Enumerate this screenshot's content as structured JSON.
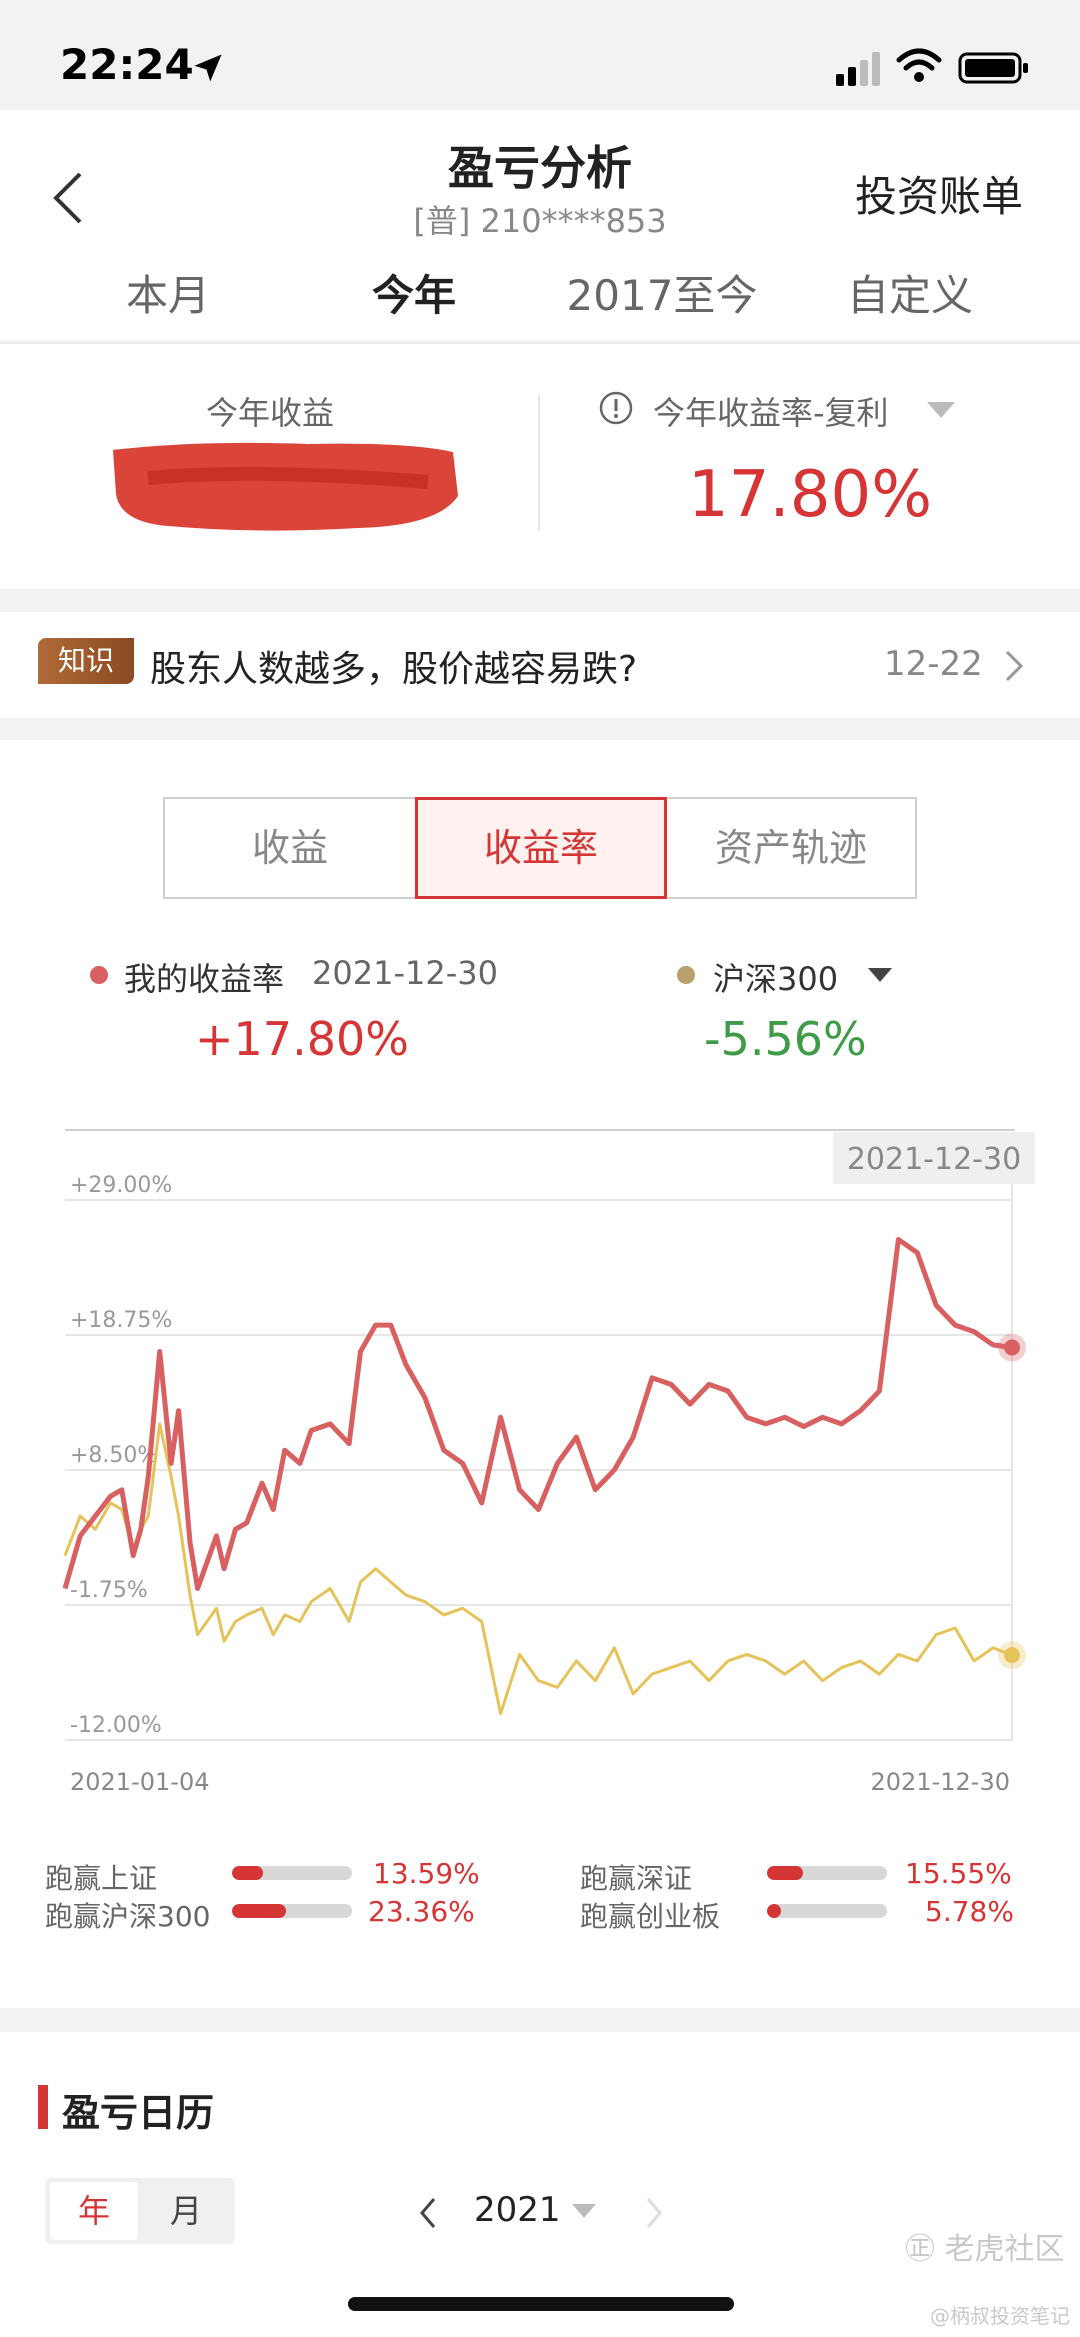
{
  "status_bar": {
    "time": "22:24"
  },
  "header": {
    "title": "盈亏分析",
    "account": "[普] 210****853",
    "bill_link": "投资账单",
    "tabs": [
      {
        "label": "本月"
      },
      {
        "label": "今年",
        "active": true
      },
      {
        "label": "2017至今"
      },
      {
        "label": "自定义"
      }
    ]
  },
  "summary": {
    "left_label": "今年收益",
    "right_label": "今年收益率-复利",
    "rate": "17.80%"
  },
  "knowledge": {
    "badge": "知识",
    "text": "股东人数越多，股价越容易跌?",
    "date": "12-22"
  },
  "segment": {
    "options": [
      "收益",
      "收益率",
      "资产轨迹"
    ],
    "active_index": 1
  },
  "legend": {
    "mine": {
      "label": "我的收益率",
      "date": "2021-12-30",
      "value": "+17.80%"
    },
    "index": {
      "label": "沪深300",
      "value": "-5.56%"
    }
  },
  "colors": {
    "accent_red": "#d63535",
    "green": "#3e9b47",
    "index_gold": "#e6c25a",
    "dot_gold": "#b8a06a"
  },
  "chart_data": {
    "type": "line",
    "tooltip_date": "2021-12-30",
    "y_ticks": [
      "+29.00%",
      "+18.75%",
      "+8.50%",
      "-1.75%",
      "-12.00%"
    ],
    "x_ticks": [
      "2021-01-04",
      "2021-12-30"
    ],
    "ylim": [
      -12.0,
      29.0
    ],
    "series": [
      {
        "name": "我的收益率",
        "color": "#d86060",
        "x": [
          0,
          4,
          8,
          12,
          15,
          18,
          20,
          22,
          25,
          28,
          30,
          33,
          35,
          40,
          42,
          45,
          48,
          52,
          55,
          58,
          62,
          65,
          70,
          75,
          78,
          82,
          86,
          90,
          95,
          100,
          105,
          110,
          115,
          120,
          125,
          130,
          135,
          140,
          145,
          150,
          155,
          160,
          165,
          170,
          175,
          180,
          185,
          190,
          195,
          200,
          205,
          210,
          215,
          220,
          225,
          230,
          235,
          240,
          245,
          250
        ],
        "values": [
          -0.5,
          3.5,
          5.0,
          6.5,
          7.0,
          2.0,
          4.0,
          8.0,
          17.5,
          9.0,
          13.0,
          3.0,
          -0.5,
          3.5,
          1.0,
          4.0,
          4.5,
          7.5,
          5.5,
          10.0,
          9.0,
          11.5,
          12.0,
          10.5,
          17.5,
          19.5,
          19.5,
          16.5,
          14.0,
          10.0,
          9.0,
          6.0,
          12.5,
          7.0,
          5.5,
          9.0,
          11.0,
          7.0,
          8.5,
          11.0,
          15.5,
          15.0,
          13.5,
          15.0,
          14.5,
          12.5,
          12.0,
          12.5,
          11.8,
          12.5,
          12.0,
          13.0,
          14.5,
          26.0,
          25.0,
          21.0,
          19.5,
          19.0,
          18.0,
          17.8
        ]
      },
      {
        "name": "沪深300",
        "color": "#e6c25a",
        "x": [
          0,
          4,
          8,
          12,
          15,
          18,
          20,
          22,
          25,
          28,
          30,
          33,
          35,
          40,
          42,
          45,
          48,
          52,
          55,
          58,
          62,
          65,
          70,
          75,
          78,
          82,
          86,
          90,
          95,
          100,
          105,
          110,
          115,
          120,
          125,
          130,
          135,
          140,
          145,
          150,
          155,
          160,
          165,
          170,
          175,
          180,
          185,
          190,
          195,
          200,
          205,
          210,
          215,
          220,
          225,
          230,
          235,
          240,
          245,
          250
        ],
        "values": [
          2.0,
          5.0,
          4.0,
          6.0,
          5.5,
          2.5,
          4.0,
          5.0,
          12.0,
          8.0,
          5.0,
          -1.0,
          -4.0,
          -2.0,
          -4.5,
          -3.0,
          -2.5,
          -2.0,
          -4.0,
          -2.5,
          -3.0,
          -1.5,
          -0.5,
          -3.0,
          0.0,
          1.0,
          0.0,
          -1.0,
          -1.5,
          -2.5,
          -2.0,
          -3.0,
          -10.0,
          -5.5,
          -7.5,
          -8.0,
          -6.0,
          -7.5,
          -5.0,
          -8.5,
          -7.0,
          -6.5,
          -6.0,
          -7.5,
          -6.0,
          -5.5,
          -6.0,
          -7.0,
          -6.0,
          -7.5,
          -6.5,
          -6.0,
          -7.0,
          -5.5,
          -6.0,
          -4.0,
          -3.5,
          -6.0,
          -5.0,
          -5.56
        ]
      }
    ]
  },
  "beats": [
    {
      "label": "跑赢上证",
      "value": "13.59%",
      "fraction": 0.26
    },
    {
      "label": "跑赢深证",
      "value": "15.55%",
      "fraction": 0.3
    },
    {
      "label": "跑赢沪深300",
      "value": "23.36%",
      "fraction": 0.45
    },
    {
      "label": "跑赢创业板",
      "value": "5.78%",
      "fraction": 0.12
    }
  ],
  "calendar": {
    "title": "盈亏日历",
    "toggle": [
      "年",
      "月"
    ],
    "year": "2021"
  },
  "watermark": {
    "logo": "㊣ 老虎社区",
    "sub": "@柄叔投资笔记"
  }
}
